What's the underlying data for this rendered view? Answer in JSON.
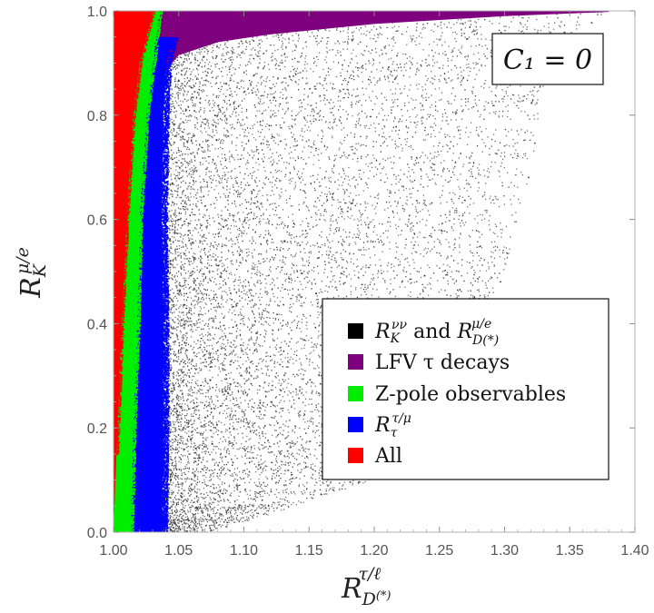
{
  "chart_data": {
    "type": "scatter",
    "title": "",
    "xlabel": "R_{D(*)}^{τ/ℓ}",
    "ylabel": "R_K^{μ/e}",
    "xlim": [
      1.0,
      1.4
    ],
    "ylim": [
      0.0,
      1.0
    ],
    "x_ticks": [
      "1.00",
      "1.05",
      "1.10",
      "1.15",
      "1.20",
      "1.25",
      "1.30",
      "1.35",
      "1.40"
    ],
    "y_ticks": [
      "0.0",
      "0.2",
      "0.4",
      "0.6",
      "0.8",
      "1.0"
    ],
    "annotation": "C₁ = 0",
    "legend_position": "right-middle",
    "series": [
      {
        "name": "R_K^{νν} and R_{D(*)}^{μ/e}",
        "legend_main": "R",
        "legend_sub": "K",
        "legend_sup": "νν",
        "legend_mid": " and ",
        "legend_main2": "R",
        "legend_sub2": "D(*)",
        "legend_sup2": "μ/e",
        "color": "#000000",
        "region": {
          "left_boundary": [
            [
              0.0,
              1.035
            ],
            [
              0.5,
              1.03
            ],
            [
              0.8,
              1.03
            ],
            [
              0.9,
              1.04
            ],
            [
              1.0,
              1.05
            ]
          ],
          "right_boundary": [
            [
              0.0,
              1.07
            ],
            [
              0.02,
              1.1
            ],
            [
              0.1,
              1.2
            ],
            [
              0.3,
              1.27
            ],
            [
              0.5,
              1.3
            ],
            [
              0.7,
              1.32
            ],
            [
              0.85,
              1.33
            ],
            [
              0.95,
              1.35
            ],
            [
              1.0,
              1.38
            ]
          ]
        }
      },
      {
        "name": "LFV τ decays",
        "legend_label": "LFV τ decays",
        "color": "#7f007f",
        "region": {
          "y_min": 0.87,
          "x_min": 1.0,
          "x_max": 1.38
        }
      },
      {
        "name": "Z-pole observables",
        "legend_label": "Z-pole observables",
        "color": "#00ee00",
        "region": {
          "x_left": 1.0,
          "right_boundary": [
            [
              0.0,
              1.013
            ],
            [
              0.2,
              1.015
            ],
            [
              0.4,
              1.018
            ],
            [
              0.6,
              1.02
            ],
            [
              0.8,
              1.025
            ],
            [
              0.9,
              1.03
            ],
            [
              1.0,
              1.035
            ]
          ]
        }
      },
      {
        "name": "R_τ^{τ/μ}",
        "legend_main": "R",
        "legend_sub": "τ",
        "legend_sup": "τ/μ",
        "color": "#0000ff",
        "region": {
          "left_boundary": [
            [
              0.0,
              1.013
            ],
            [
              0.2,
              1.015
            ],
            [
              0.4,
              1.018
            ],
            [
              0.6,
              1.02
            ],
            [
              0.8,
              1.025
            ],
            [
              0.9,
              1.03
            ],
            [
              0.95,
              1.033
            ]
          ],
          "right_boundary": [
            [
              0.0,
              1.037
            ],
            [
              0.2,
              1.038
            ],
            [
              0.4,
              1.038
            ],
            [
              0.6,
              1.037
            ],
            [
              0.8,
              1.038
            ],
            [
              0.9,
              1.04
            ],
            [
              0.95,
              1.045
            ]
          ]
        }
      },
      {
        "name": "All",
        "legend_label": "All",
        "color": "#ff0000",
        "region": {
          "x_left": 1.0,
          "right_boundary": [
            [
              0.0,
              1.0
            ],
            [
              0.2,
              1.003
            ],
            [
              0.4,
              1.006
            ],
            [
              0.6,
              1.01
            ],
            [
              0.8,
              1.015
            ],
            [
              0.9,
              1.02
            ],
            [
              1.0,
              1.03
            ]
          ]
        }
      }
    ]
  }
}
